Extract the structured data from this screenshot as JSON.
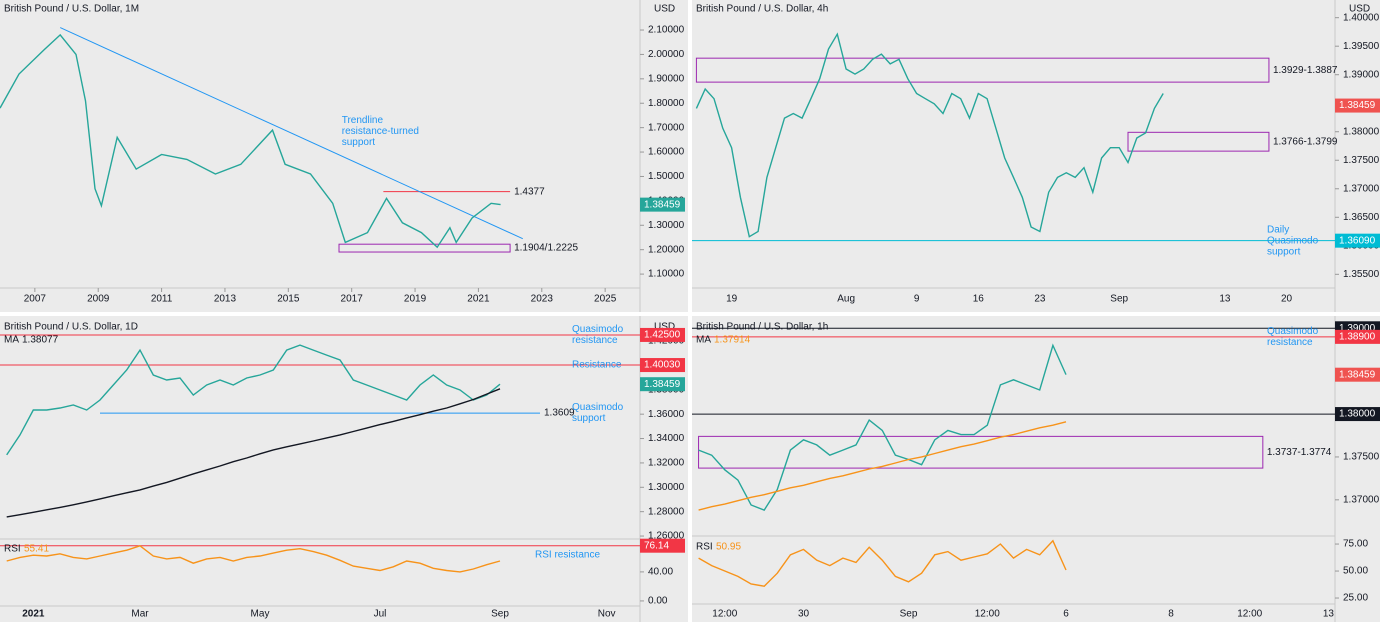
{
  "chart_data": [
    {
      "type": "line",
      "title": "British Pound / U.S. Dollar, 1M",
      "currency": "USD",
      "x": [
        2005.9,
        2006.5,
        2007.3,
        2007.8,
        2008.3,
        2008.6,
        2008.9,
        2009.1,
        2009.6,
        2010.2,
        2011.0,
        2011.8,
        2012.7,
        2013.5,
        2014.5,
        2014.9,
        2015.7,
        2016.4,
        2016.8,
        2017.5,
        2018.1,
        2018.6,
        2019.2,
        2019.7,
        2020.1,
        2020.3,
        2020.8,
        2021.4,
        2021.7
      ],
      "xlim": [
        2005.9,
        2026.1
      ],
      "xticks": [
        2007,
        2009,
        2011,
        2013,
        2015,
        2017,
        2019,
        2021,
        2023,
        2025
      ],
      "series": [
        {
          "color": "#26a69a",
          "values": [
            1.78,
            1.92,
            2.02,
            2.08,
            2.0,
            1.81,
            1.45,
            1.38,
            1.66,
            1.53,
            1.59,
            1.57,
            1.51,
            1.55,
            1.69,
            1.55,
            1.51,
            1.39,
            1.23,
            1.27,
            1.41,
            1.31,
            1.27,
            1.21,
            1.29,
            1.23,
            1.33,
            1.39,
            1.3846
          ]
        }
      ],
      "ylim": [
        1.043,
        2.223
      ],
      "yticks": [
        {
          "value": 1.1,
          "label": "1.10000"
        },
        {
          "value": 1.2,
          "label": "1.20000"
        },
        {
          "value": 1.3,
          "label": "1.30000"
        },
        {
          "value": 1.4,
          "label": "1.40000"
        },
        {
          "value": 1.5,
          "label": "1.50000"
        },
        {
          "value": 1.6,
          "label": "1.60000"
        },
        {
          "value": 1.7,
          "label": "1.70000"
        },
        {
          "value": 1.8,
          "label": "1.80000"
        },
        {
          "value": 1.9,
          "label": "1.90000"
        },
        {
          "value": 2.0,
          "label": "2.00000"
        },
        {
          "value": 2.1,
          "label": "2.10000"
        }
      ],
      "last": 1.38459,
      "last_color": "#26a69a",
      "trendline": {
        "color": "#2196f3",
        "x": [
          2007.8,
          2022.4
        ],
        "values": [
          2.11,
          1.245
        ],
        "note": [
          "Trendline",
          "resistance-turned",
          "support"
        ]
      },
      "levels": [
        {
          "value": 1.4377,
          "color": "#f23645",
          "tag": false,
          "from": 2018.0,
          "to": 2022.0
        }
      ],
      "zones": [
        {
          "values": [
            1.1904,
            1.2225
          ],
          "label": "1.1904/1.2225",
          "color": "#9c27b0",
          "from": 2016.6,
          "to": 2022.0
        }
      ]
    },
    {
      "type": "line",
      "title": "British Pound / U.S. Dollar, 4h",
      "currency": "USD",
      "categories": [
        null,
        null,
        null,
        null,
        "19",
        null,
        null,
        null,
        null,
        null,
        null,
        null,
        null,
        null,
        null,
        null,
        null,
        "Aug",
        null,
        null,
        null,
        null,
        null,
        null,
        null,
        "9",
        null,
        null,
        null,
        null,
        null,
        null,
        "16",
        null,
        null,
        null,
        null,
        null,
        null,
        "23",
        null,
        null,
        null,
        null,
        null,
        null,
        null,
        null,
        "Sep",
        null,
        null,
        null,
        null,
        null,
        null,
        null,
        null,
        null,
        null,
        null,
        "13",
        null,
        null,
        null,
        null,
        null,
        null,
        "20",
        null,
        null,
        null,
        null,
        null
      ],
      "series": [
        {
          "color": "#26a69a",
          "values": [
            1.3841,
            1.3875,
            1.3858,
            1.3806,
            1.3772,
            1.3685,
            1.3616,
            1.3625,
            1.372,
            1.3772,
            1.3824,
            1.3832,
            1.3824,
            1.3858,
            1.3893,
            1.3945,
            1.3971,
            1.391,
            1.3901,
            1.391,
            1.3927,
            1.3936,
            1.3919,
            1.3927,
            1.3893,
            1.3867,
            1.3858,
            1.3849,
            1.3832,
            1.3867,
            1.3858,
            1.3824,
            1.3867,
            1.3858,
            1.3806,
            1.3754,
            1.372,
            1.3685,
            1.3633,
            1.3625,
            1.3694,
            1.372,
            1.3728,
            1.372,
            1.3737,
            1.3694,
            1.3754,
            1.3772,
            1.3772,
            1.3746,
            1.3789,
            1.3798,
            1.3841,
            1.3867,
            null,
            null,
            null,
            null,
            null,
            null,
            null,
            null,
            null,
            null,
            null,
            null,
            null,
            null,
            null,
            null,
            null,
            null,
            null
          ]
        }
      ],
      "ylim": [
        1.3526,
        1.4031
      ],
      "yticks": [
        {
          "value": 1.355,
          "label": "1.35500"
        },
        {
          "value": 1.36,
          "label": "1.36000"
        },
        {
          "value": 1.365,
          "label": "1.36500"
        },
        {
          "value": 1.37,
          "label": "1.37000"
        },
        {
          "value": 1.375,
          "label": "1.37500"
        },
        {
          "value": 1.38,
          "label": "1.38000"
        },
        {
          "value": 1.385,
          "label": "1.38500"
        },
        {
          "value": 1.39,
          "label": "1.39000"
        },
        {
          "value": 1.395,
          "label": "1.39500"
        },
        {
          "value": 1.4,
          "label": "1.40000"
        }
      ],
      "last": 1.38459,
      "last_color": "#ef5350",
      "levels": [
        {
          "value": 1.3609,
          "label": "1.36090",
          "color": "#00bcd4",
          "tag": true,
          "note": [
            "Daily",
            "Quasimodo",
            "support"
          ]
        }
      ],
      "zones": [
        {
          "values": [
            1.3887,
            1.3929
          ],
          "label": "1.3929-1.3887",
          "color": "#9c27b0",
          "from": 0,
          "to": 65
        },
        {
          "values": [
            1.3766,
            1.3799
          ],
          "label": "1.3766-1.3799",
          "color": "#9c27b0",
          "from": 49,
          "to": 65
        }
      ]
    },
    {
      "type": "line",
      "title": "British Pound / U.S. Dollar, 1D",
      "currency": "USD",
      "categories": [
        null,
        null,
        "2021",
        null,
        null,
        null,
        null,
        null,
        null,
        null,
        "Mar",
        null,
        null,
        null,
        null,
        null,
        null,
        null,
        null,
        "May",
        null,
        null,
        null,
        null,
        null,
        null,
        null,
        null,
        "Jul",
        null,
        null,
        null,
        null,
        null,
        null,
        null,
        null,
        "Sep",
        null,
        null,
        null,
        null,
        null,
        null,
        null,
        "Nov",
        null,
        null
      ],
      "series": [
        {
          "color": "#26a69a",
          "values": [
            1.3266,
            1.343,
            1.3634,
            1.3634,
            1.3651,
            1.3675,
            1.3634,
            1.3716,
            1.3839,
            1.3962,
            1.4126,
            1.3921,
            1.388,
            1.3897,
            1.3757,
            1.3839,
            1.388,
            1.3839,
            1.3897,
            1.3921,
            1.3962,
            1.4126,
            1.4167,
            1.4126,
            1.4085,
            1.4044,
            1.388,
            1.3839,
            1.3798,
            1.3757,
            1.3716,
            1.3839,
            1.3921,
            1.3839,
            1.3798,
            1.3716,
            1.3757,
            1.3846,
            null,
            null,
            null,
            null,
            null,
            null,
            null,
            null,
            null,
            null
          ]
        },
        {
          "name": "MA",
          "value": 1.38077,
          "color": "#131722",
          "values": [
            1.2757,
            1.2775,
            1.2795,
            1.2815,
            1.2835,
            1.2856,
            1.288,
            1.2905,
            1.293,
            1.2955,
            1.2979,
            1.301,
            1.304,
            1.3075,
            1.311,
            1.3143,
            1.3175,
            1.321,
            1.324,
            1.3275,
            1.3307,
            1.3332,
            1.3356,
            1.338,
            1.3405,
            1.343,
            1.3458,
            1.3486,
            1.3514,
            1.3541,
            1.3569,
            1.3596,
            1.3624,
            1.3651,
            1.3685,
            1.372,
            1.3765,
            1.3808,
            null,
            null,
            null,
            null,
            null,
            null,
            null,
            null,
            null,
            null
          ]
        }
      ],
      "ylim": [
        1.2584,
        1.4389
      ],
      "yticks": [
        {
          "value": 1.26,
          "label": "1.26000"
        },
        {
          "value": 1.28,
          "label": "1.28000"
        },
        {
          "value": 1.3,
          "label": "1.30000"
        },
        {
          "value": 1.32,
          "label": "1.32000"
        },
        {
          "value": 1.34,
          "label": "1.34000"
        },
        {
          "value": 1.36,
          "label": "1.36000"
        },
        {
          "value": 1.38,
          "label": "1.38000"
        },
        {
          "value": 1.4,
          "label": "1.40000"
        },
        {
          "value": 1.42,
          "label": "1.42000"
        }
      ],
      "last": 1.38459,
      "last_color": "#26a69a",
      "levels": [
        {
          "value": 1.425,
          "label": "1.42500",
          "color": "#f23645",
          "tag": true,
          "note": [
            "Quasimodo",
            "resistance"
          ]
        },
        {
          "value": 1.4003,
          "label": "1.40030",
          "color": "#f23645",
          "tag": true,
          "note": [
            "Resistance"
          ]
        },
        {
          "value": 1.3609,
          "color": "#2196f3",
          "tag": false,
          "from": 7,
          "to": 40,
          "note": [
            "Quasimodo",
            "support"
          ]
        }
      ],
      "rsi": {
        "name": "RSI",
        "value": 55.41,
        "color": "#f7931a",
        "ylim": [
          -7,
          84
        ],
        "yticks": [
          {
            "value": 0,
            "label": "0.00"
          },
          {
            "value": 40,
            "label": "40.00"
          }
        ],
        "values": [
          55,
          60,
          63,
          62,
          65,
          60,
          58,
          62,
          66,
          70,
          76,
          62,
          58,
          60,
          52,
          58,
          60,
          55,
          60,
          62,
          66,
          70,
          72,
          68,
          63,
          56,
          48,
          45,
          42,
          47,
          55,
          52,
          45,
          42,
          40,
          44,
          50,
          55,
          null,
          null,
          null,
          null,
          null,
          null,
          null,
          null,
          null,
          null
        ],
        "levels": [
          {
            "value": 76.14,
            "color": "#f23645",
            "tag": true,
            "note": [
              "RSI resistance"
            ]
          }
        ]
      }
    },
    {
      "type": "line",
      "title": "British Pound / U.S. Dollar, 1h",
      "currency": "USD",
      "categories": [
        null,
        null,
        "12:00",
        null,
        null,
        null,
        null,
        null,
        "30",
        null,
        null,
        null,
        null,
        null,
        null,
        null,
        "Sep",
        null,
        null,
        null,
        null,
        null,
        "12:00",
        null,
        null,
        null,
        null,
        null,
        "6",
        null,
        null,
        null,
        null,
        null,
        null,
        null,
        "8",
        null,
        null,
        null,
        null,
        null,
        "12:00",
        null,
        null,
        null,
        null,
        null,
        "13"
      ],
      "series": [
        {
          "color": "#26a69a",
          "values": [
            1.3758,
            1.3752,
            1.3735,
            1.3723,
            1.3694,
            1.3688,
            1.3712,
            1.3758,
            1.377,
            1.3764,
            1.3752,
            1.3758,
            1.3764,
            1.3793,
            1.3781,
            1.3752,
            1.3747,
            1.3741,
            1.377,
            1.3781,
            1.3776,
            1.3776,
            1.3787,
            1.3834,
            1.384,
            1.3834,
            1.3828,
            1.388,
            1.3846,
            null,
            null,
            null,
            null,
            null,
            null,
            null,
            null,
            null,
            null,
            null,
            null,
            null,
            null,
            null,
            null,
            null,
            null,
            null,
            null
          ]
        },
        {
          "name": "MA",
          "value": 1.37914,
          "color": "#f7931a",
          "values": [
            1.3688,
            1.3692,
            1.3695,
            1.3699,
            1.3703,
            1.3706,
            1.371,
            1.3714,
            1.3717,
            1.3721,
            1.3725,
            1.3728,
            1.3732,
            1.3736,
            1.3739,
            1.3743,
            1.3747,
            1.375,
            1.3754,
            1.3758,
            1.3762,
            1.3765,
            1.3769,
            1.3773,
            1.3776,
            1.378,
            1.3784,
            1.3787,
            1.3791,
            null,
            null,
            null,
            null,
            null,
            null,
            null,
            null,
            null,
            null,
            null,
            null,
            null,
            null,
            null,
            null,
            null,
            null,
            null,
            null
          ]
        }
      ],
      "ylim": [
        1.3659,
        1.3912
      ],
      "yticks": [
        {
          "value": 1.37,
          "label": "1.37000"
        },
        {
          "value": 1.375,
          "label": "1.37500"
        }
      ],
      "last": 1.38459,
      "last_color": "#ef5350",
      "levels": [
        {
          "value": 1.39,
          "label": "1.39000",
          "color": "#131722",
          "tag": true
        },
        {
          "value": 1.389,
          "label": "1.38900",
          "color": "#f23645",
          "tag": true,
          "note": [
            "Quasimodo",
            "resistance"
          ]
        },
        {
          "value": 1.38,
          "label": "1.38000",
          "color": "#131722",
          "tag": true
        }
      ],
      "zones": [
        {
          "values": [
            1.3737,
            1.3774
          ],
          "label": "1.3737-1.3774",
          "color": "#9c27b0",
          "from": 0,
          "to": 43
        }
      ],
      "rsi": {
        "name": "RSI",
        "value": 50.95,
        "color": "#f7931a",
        "ylim": [
          20.4,
          80.6
        ],
        "yticks": [
          {
            "value": 25,
            "label": "25.00"
          },
          {
            "value": 50,
            "label": "50.00"
          },
          {
            "value": 75,
            "label": "75.00"
          }
        ],
        "values": [
          62,
          55,
          50,
          45,
          38,
          36,
          48,
          65,
          70,
          60,
          55,
          62,
          58,
          72,
          60,
          45,
          40,
          48,
          65,
          68,
          60,
          63,
          66,
          75,
          62,
          70,
          65,
          78,
          51,
          null,
          null,
          null,
          null,
          null,
          null,
          null,
          null,
          null,
          null,
          null,
          null,
          null,
          null,
          null,
          null,
          null,
          null,
          null,
          null
        ]
      }
    }
  ]
}
